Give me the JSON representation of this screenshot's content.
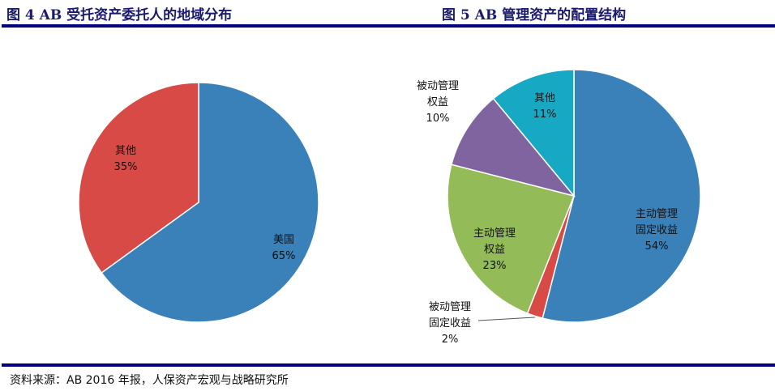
{
  "figure4_title": "图 4   AB 受托资产委托人的地域分布",
  "figure5_title": "图 5   AB 管理资产的配置结构",
  "source": "资料来源：AB 2016 年报，人保资产宏观与战略研究所",
  "chart_data": [
    {
      "type": "pie",
      "title": "图 4   AB 受托资产委托人的地域分布",
      "slices": [
        {
          "label": [
            "美国"
          ],
          "value": 65,
          "pct": "65%",
          "color": "#3a80b9"
        },
        {
          "label": [
            "其他"
          ],
          "value": 35,
          "pct": "35%",
          "color": "#d84a45"
        }
      ]
    },
    {
      "type": "pie",
      "title": "图 5   AB 管理资产的配置结构",
      "slices": [
        {
          "label": [
            "主动管理",
            "固定收益"
          ],
          "value": 54,
          "pct": "54%",
          "color": "#3a80b9"
        },
        {
          "label": [
            "被动管理",
            "固定收益"
          ],
          "value": 2,
          "pct": "2%",
          "color": "#d84a45"
        },
        {
          "label": [
            "主动管理",
            "权益"
          ],
          "value": 23,
          "pct": "23%",
          "color": "#93bb57"
        },
        {
          "label": [
            "被动管理",
            "权益"
          ],
          "value": 10,
          "pct": "10%",
          "color": "#8064a0"
        },
        {
          "label": [
            "其他"
          ],
          "value": 11,
          "pct": "11%",
          "color": "#17a9c4"
        }
      ]
    }
  ]
}
